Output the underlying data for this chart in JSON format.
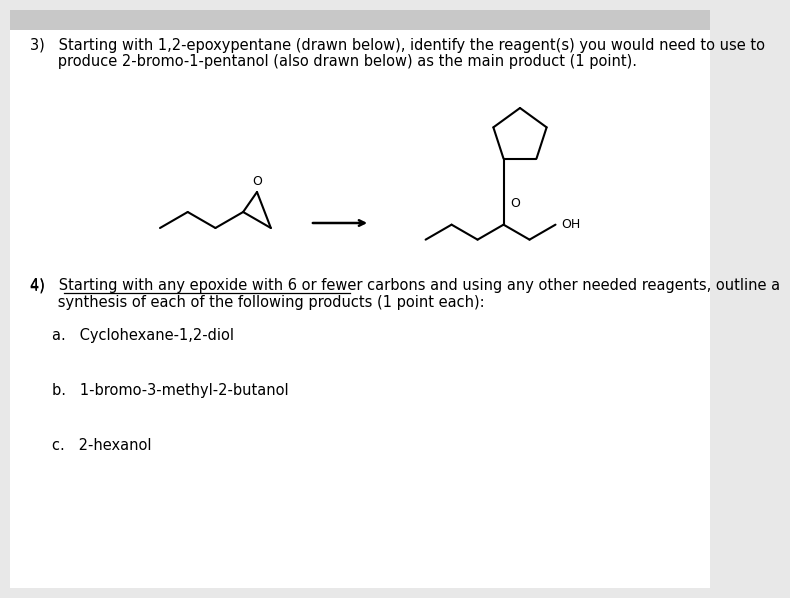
{
  "bg_color": "#e8e8e8",
  "paper_color": "#ffffff",
  "header_color": "#c8c8c8",
  "text_color": "#000000",
  "q3_line1": "3)   Starting with 1,2-epoxypentane (drawn below), identify the reagent(s) you would need to use to",
  "q3_line2": "      produce 2-bromo-1-pentanol (also drawn below) as the main product (1 point).",
  "q4_line1_pre": "4)   ",
  "q4_line1_underlined": "Starting with any epoxide with 6 or fewer carbons",
  "q4_line1_post": " and using any other needed reagents, outline a",
  "q4_line2": "      synthesis of each of the following products (1 point each):",
  "item_a": "a.   Cyclohexane-1,2-diol",
  "item_b": "b.   1-bromo-3-methyl-2-butanol",
  "item_c": "c.   2-hexanol",
  "font_size": 10.5,
  "mol_lw": 1.5
}
